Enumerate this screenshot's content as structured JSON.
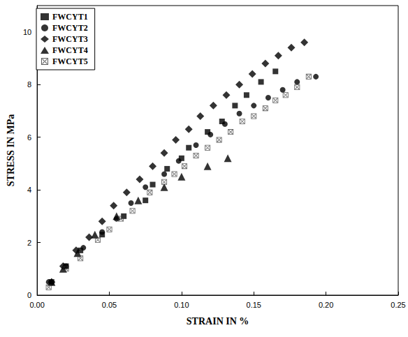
{
  "chart_data": {
    "type": "scatter",
    "x_label": "STRAIN IN %",
    "y_label": "STRESS IN MPa",
    "xlim": [
      0,
      0.25
    ],
    "xticks": [
      {
        "value": 0,
        "label": "0.00"
      },
      {
        "value": 0.05,
        "label": "0.05"
      },
      {
        "value": 0.1,
        "label": "0.10"
      },
      {
        "value": 0.15,
        "label": "0.15"
      },
      {
        "value": 0.2,
        "label": "0.20"
      },
      {
        "value": 0.25,
        "label": "0.25"
      }
    ],
    "ylim": [
      0,
      11
    ],
    "yticks": [
      0,
      2,
      4,
      6,
      8,
      10
    ],
    "grid": false,
    "legend": "upper left",
    "series": [
      {
        "name": "FWCYT1",
        "color": "#000000",
        "marker": "square",
        "x": [
          0.01,
          0.02,
          0.03,
          0.045,
          0.06,
          0.075,
          0.08,
          0.09,
          0.1,
          0.105,
          0.118,
          0.128,
          0.137,
          0.145,
          0.155,
          0.165
        ],
        "values": [
          0.5,
          1.1,
          1.7,
          2.3,
          3.0,
          3.6,
          4.2,
          4.8,
          5.2,
          5.6,
          6.2,
          6.6,
          7.2,
          7.6,
          8.1,
          8.5
        ]
      },
      {
        "name": "FWCYT2",
        "color": "#000000",
        "marker": "circle",
        "x": [
          0.008,
          0.02,
          0.032,
          0.045,
          0.055,
          0.065,
          0.075,
          0.088,
          0.098,
          0.11,
          0.12,
          0.13,
          0.14,
          0.15,
          0.16,
          0.17,
          0.18,
          0.193
        ],
        "values": [
          0.5,
          1.1,
          1.8,
          2.4,
          2.9,
          3.5,
          4.1,
          4.6,
          5.1,
          5.7,
          6.1,
          6.5,
          6.9,
          7.2,
          7.5,
          7.8,
          8.1,
          8.3
        ]
      },
      {
        "name": "FWCYT3",
        "color": "#000000",
        "marker": "diamond",
        "x": [
          0.01,
          0.018,
          0.027,
          0.036,
          0.045,
          0.053,
          0.062,
          0.071,
          0.08,
          0.088,
          0.096,
          0.105,
          0.113,
          0.122,
          0.131,
          0.14,
          0.149,
          0.158,
          0.167,
          0.176,
          0.185
        ],
        "values": [
          0.5,
          1.1,
          1.7,
          2.2,
          2.8,
          3.4,
          3.9,
          4.4,
          4.9,
          5.4,
          5.9,
          6.3,
          6.8,
          7.2,
          7.6,
          8.0,
          8.4,
          8.8,
          9.1,
          9.4,
          9.6
        ]
      },
      {
        "name": "FWCYT4",
        "color": "#000000",
        "marker": "triangle",
        "x": [
          0.01,
          0.018,
          0.028,
          0.04,
          0.055,
          0.07,
          0.088,
          0.1,
          0.118,
          0.132
        ],
        "values": [
          0.5,
          1.0,
          1.6,
          2.3,
          3.0,
          3.6,
          4.1,
          4.5,
          4.9,
          5.2
        ]
      },
      {
        "name": "FWCYT5",
        "color": "#333333",
        "marker": "square_x",
        "x": [
          0.008,
          0.02,
          0.03,
          0.042,
          0.05,
          0.058,
          0.066,
          0.078,
          0.088,
          0.095,
          0.102,
          0.11,
          0.118,
          0.126,
          0.134,
          0.142,
          0.15,
          0.158,
          0.165,
          0.172,
          0.18,
          0.188
        ],
        "values": [
          0.3,
          1.0,
          1.4,
          2.1,
          2.5,
          2.9,
          3.2,
          3.9,
          4.3,
          4.6,
          4.9,
          5.3,
          5.6,
          5.9,
          6.2,
          6.6,
          6.8,
          7.1,
          7.4,
          7.6,
          7.9,
          8.3
        ]
      }
    ]
  }
}
